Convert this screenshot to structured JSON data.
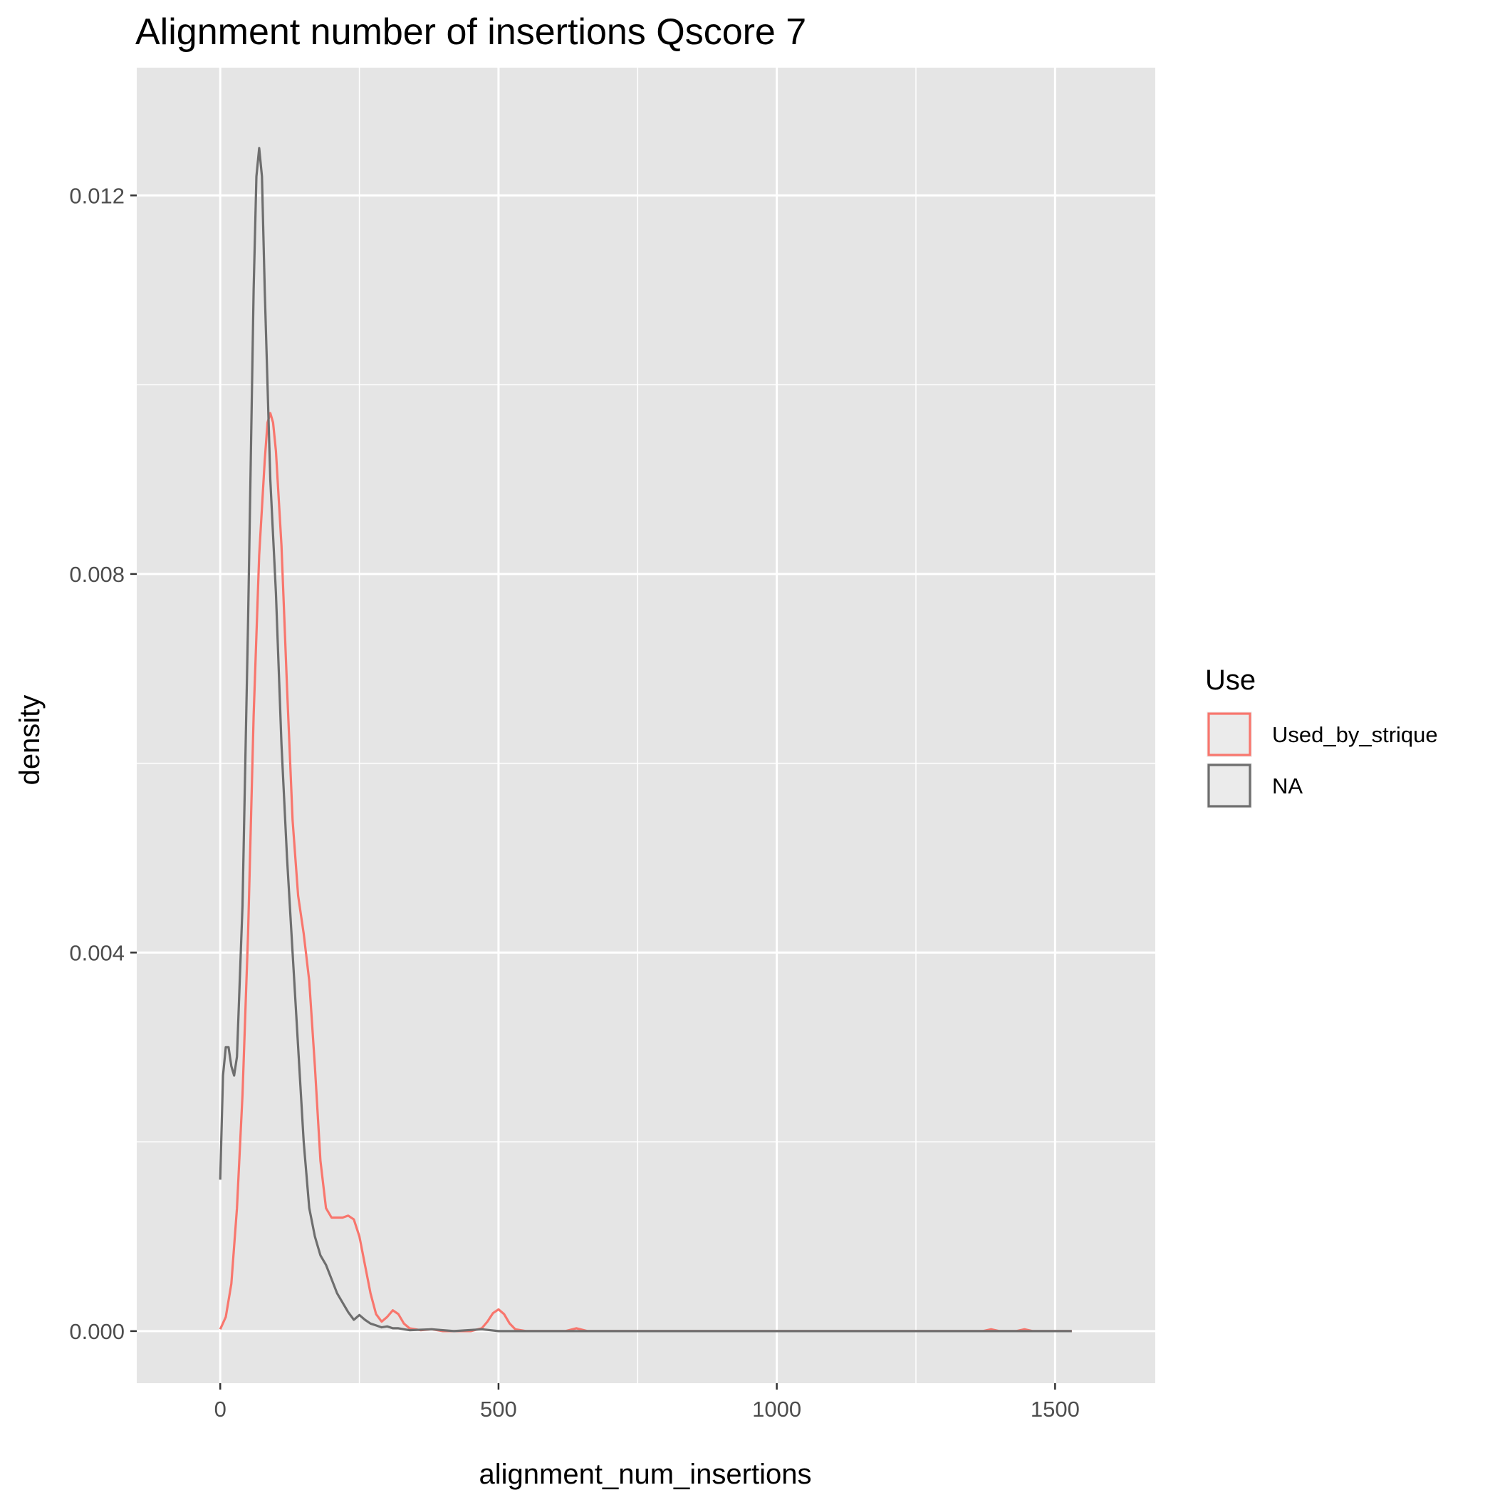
{
  "chart_data": {
    "type": "line",
    "title": "Alignment number of insertions Qscore 7",
    "xlabel": "alignment_num_insertions",
    "ylabel": "density",
    "xlim": [
      -150,
      1680
    ],
    "ylim": [
      -0.00055,
      0.01335
    ],
    "x_ticks": [
      0,
      500,
      1000,
      1500
    ],
    "x_tick_labels": [
      "0",
      "500",
      "1000",
      "1500"
    ],
    "x_minor": [
      250,
      750,
      1250
    ],
    "y_ticks": [
      0.0,
      0.004,
      0.008,
      0.012
    ],
    "y_tick_labels": [
      "0.000",
      "0.004",
      "0.008",
      "0.012"
    ],
    "y_minor": [
      0.002,
      0.006,
      0.01
    ],
    "grid": true,
    "panel_background": "#e5e5e5",
    "grid_color": "#ffffff",
    "legend": {
      "title": "Use",
      "position": "right",
      "entries": [
        "Used_by_strique",
        "NA"
      ]
    },
    "series": [
      {
        "name": "Used_by_strique",
        "color": "#f8766d",
        "points": [
          [
            0,
            2e-05
          ],
          [
            10,
            0.00015
          ],
          [
            20,
            0.0005
          ],
          [
            30,
            0.0013
          ],
          [
            40,
            0.0025
          ],
          [
            50,
            0.0042
          ],
          [
            60,
            0.0065
          ],
          [
            70,
            0.0082
          ],
          [
            80,
            0.0092
          ],
          [
            85,
            0.0096
          ],
          [
            90,
            0.0097
          ],
          [
            95,
            0.0096
          ],
          [
            100,
            0.0093
          ],
          [
            110,
            0.0083
          ],
          [
            120,
            0.0068
          ],
          [
            130,
            0.0054
          ],
          [
            140,
            0.0046
          ],
          [
            150,
            0.0042
          ],
          [
            160,
            0.0037
          ],
          [
            170,
            0.0028
          ],
          [
            180,
            0.0018
          ],
          [
            190,
            0.0013
          ],
          [
            200,
            0.0012
          ],
          [
            210,
            0.0012
          ],
          [
            220,
            0.0012
          ],
          [
            230,
            0.00122
          ],
          [
            240,
            0.00118
          ],
          [
            250,
            0.001
          ],
          [
            260,
            0.0007
          ],
          [
            270,
            0.0004
          ],
          [
            280,
            0.00018
          ],
          [
            290,
            0.0001
          ],
          [
            300,
            0.00015
          ],
          [
            310,
            0.00022
          ],
          [
            320,
            0.00018
          ],
          [
            330,
            8e-05
          ],
          [
            340,
            3e-05
          ],
          [
            360,
            1e-05
          ],
          [
            380,
            2e-05
          ],
          [
            400,
            0.0
          ],
          [
            450,
            0.0
          ],
          [
            470,
            3e-05
          ],
          [
            480,
            0.0001
          ],
          [
            490,
            0.00019
          ],
          [
            500,
            0.00023
          ],
          [
            510,
            0.00018
          ],
          [
            520,
            8e-05
          ],
          [
            530,
            2e-05
          ],
          [
            550,
            0.0
          ],
          [
            620,
            0.0
          ],
          [
            640,
            3e-05
          ],
          [
            660,
            0.0
          ],
          [
            1370,
            0.0
          ],
          [
            1385,
            2e-05
          ],
          [
            1400,
            0.0
          ],
          [
            1430,
            0.0
          ],
          [
            1445,
            2e-05
          ],
          [
            1460,
            0.0
          ],
          [
            1530,
            0.0
          ]
        ]
      },
      {
        "name": "NA",
        "color": "#6e6e6e",
        "points": [
          [
            0,
            0.0016
          ],
          [
            5,
            0.0027
          ],
          [
            10,
            0.003
          ],
          [
            15,
            0.003
          ],
          [
            20,
            0.0028
          ],
          [
            25,
            0.0027
          ],
          [
            30,
            0.0029
          ],
          [
            40,
            0.0045
          ],
          [
            50,
            0.0075
          ],
          [
            60,
            0.011
          ],
          [
            65,
            0.0122
          ],
          [
            70,
            0.0125
          ],
          [
            75,
            0.0122
          ],
          [
            80,
            0.011
          ],
          [
            90,
            0.009
          ],
          [
            100,
            0.0078
          ],
          [
            110,
            0.0062
          ],
          [
            120,
            0.005
          ],
          [
            130,
            0.004
          ],
          [
            140,
            0.003
          ],
          [
            150,
            0.002
          ],
          [
            160,
            0.0013
          ],
          [
            170,
            0.001
          ],
          [
            180,
            0.0008
          ],
          [
            190,
            0.0007
          ],
          [
            200,
            0.00055
          ],
          [
            210,
            0.0004
          ],
          [
            220,
            0.0003
          ],
          [
            230,
            0.0002
          ],
          [
            240,
            0.00012
          ],
          [
            250,
            0.00017
          ],
          [
            260,
            0.00012
          ],
          [
            270,
            8e-05
          ],
          [
            280,
            6e-05
          ],
          [
            290,
            4e-05
          ],
          [
            300,
            5e-05
          ],
          [
            310,
            3e-05
          ],
          [
            320,
            3e-05
          ],
          [
            330,
            2e-05
          ],
          [
            340,
            1e-05
          ],
          [
            380,
            2e-05
          ],
          [
            420,
            0.0
          ],
          [
            470,
            2e-05
          ],
          [
            500,
            0.0
          ],
          [
            1530,
            0.0
          ]
        ]
      }
    ]
  }
}
